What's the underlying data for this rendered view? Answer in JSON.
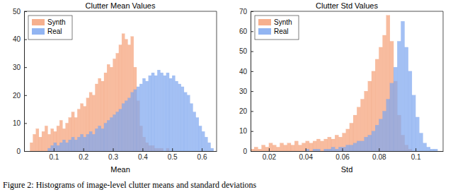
{
  "chart_data": [
    {
      "type": "histogram",
      "title": "Clutter Mean Values",
      "x_label": "Mean",
      "bins": [
        0,
        0.01,
        0.02,
        0.03,
        0.04,
        0.05,
        0.06,
        0.07,
        0.08,
        0.09,
        0.1,
        0.11,
        0.12,
        0.13,
        0.14,
        0.15,
        0.16,
        0.17,
        0.18,
        0.19,
        0.2,
        0.21,
        0.22,
        0.23,
        0.24,
        0.25,
        0.26,
        0.27,
        0.28,
        0.29,
        0.3,
        0.31,
        0.32,
        0.33,
        0.34,
        0.35,
        0.36,
        0.37,
        0.38,
        0.39,
        0.4,
        0.41,
        0.42,
        0.43,
        0.44,
        0.45,
        0.46,
        0.47,
        0.48,
        0.49,
        0.5,
        0.51,
        0.52,
        0.53,
        0.54,
        0.55,
        0.56,
        0.57,
        0.58,
        0.59,
        0.6,
        0.61,
        0.62,
        0.63,
        0.64,
        0.65
      ],
      "series": [
        {
          "name": "Synth",
          "color": "#f5a27a",
          "values": [
            0,
            0,
            3,
            6,
            8,
            5,
            7,
            9,
            6,
            8,
            7,
            9,
            11,
            8,
            10,
            12,
            14,
            12,
            15,
            17,
            16,
            19,
            21,
            20,
            24,
            26,
            25,
            28,
            31,
            30,
            33,
            35,
            38,
            42,
            40,
            38,
            41,
            30,
            18,
            9,
            5,
            3,
            2,
            2,
            1,
            1,
            1,
            0,
            1,
            0,
            0,
            0,
            0,
            0,
            0,
            0,
            0,
            0,
            0,
            0,
            0,
            0,
            0,
            0,
            0
          ]
        },
        {
          "name": "Real",
          "color": "#7fa8f0",
          "values": [
            0,
            0,
            0,
            0,
            0,
            0,
            0,
            0,
            1,
            2,
            3,
            2,
            3,
            4,
            3,
            4,
            5,
            4,
            5,
            6,
            5,
            6,
            7,
            6,
            8,
            9,
            8,
            10,
            11,
            12,
            13,
            14,
            15,
            17,
            18,
            19,
            21,
            22,
            23,
            24,
            26,
            25,
            27,
            28,
            27,
            29,
            28,
            27,
            28,
            26,
            27,
            25,
            24,
            23,
            21,
            20,
            17,
            14,
            12,
            9,
            7,
            5,
            3,
            1,
            0
          ]
        }
      ],
      "xlim": [
        0,
        0.65
      ],
      "xticks": [
        0.1,
        0.2,
        0.3,
        0.4,
        0.5,
        0.6
      ],
      "ylim": [
        0,
        50
      ],
      "yticks": [
        0,
        10,
        20,
        30,
        40,
        50
      ],
      "legend": "upper left",
      "grid": false
    },
    {
      "type": "histogram",
      "title": "Clutter Std Values",
      "x_label": "Std",
      "bins": [
        0.01,
        0.012,
        0.014,
        0.016,
        0.018,
        0.02,
        0.022,
        0.024,
        0.026,
        0.028,
        0.03,
        0.032,
        0.034,
        0.036,
        0.038,
        0.04,
        0.042,
        0.044,
        0.046,
        0.048,
        0.05,
        0.052,
        0.054,
        0.056,
        0.058,
        0.06,
        0.062,
        0.064,
        0.066,
        0.068,
        0.07,
        0.072,
        0.074,
        0.076,
        0.078,
        0.08,
        0.082,
        0.084,
        0.086,
        0.088,
        0.09,
        0.092,
        0.094,
        0.096,
        0.098,
        0.1,
        0.102,
        0.104,
        0.106,
        0.108,
        0.11,
        0.112,
        0.114
      ],
      "series": [
        {
          "name": "Synth",
          "color": "#f5a27a",
          "values": [
            1,
            2,
            1,
            3,
            2,
            4,
            3,
            2,
            4,
            3,
            4,
            3,
            5,
            3,
            4,
            5,
            4,
            5,
            6,
            5,
            6,
            7,
            6,
            8,
            7,
            9,
            11,
            14,
            18,
            22,
            26,
            30,
            35,
            40,
            46,
            52,
            58,
            68,
            55,
            35,
            18,
            8,
            3,
            1,
            0,
            0,
            0,
            0,
            0,
            0,
            0,
            0
          ]
        },
        {
          "name": "Real",
          "color": "#7fa8f0",
          "values": [
            0,
            0,
            0,
            0,
            0,
            0,
            0,
            0,
            0,
            0,
            0,
            0,
            0,
            0,
            0,
            1,
            0,
            1,
            1,
            0,
            1,
            1,
            2,
            1,
            2,
            2,
            3,
            3,
            4,
            5,
            5,
            7,
            8,
            10,
            13,
            16,
            20,
            26,
            34,
            42,
            55,
            65,
            52,
            40,
            28,
            17,
            9,
            4,
            2,
            1,
            1,
            0
          ]
        }
      ],
      "xlim": [
        0.01,
        0.115
      ],
      "xticks": [
        0.02,
        0.04,
        0.06,
        0.08,
        0.1
      ],
      "ylim": [
        0,
        70
      ],
      "yticks": [
        0,
        10,
        20,
        30,
        40,
        50,
        60,
        70
      ],
      "legend": "upper left",
      "grid": false
    }
  ],
  "caption": "Figure 2: Histograms of image-level clutter means and standard deviations"
}
